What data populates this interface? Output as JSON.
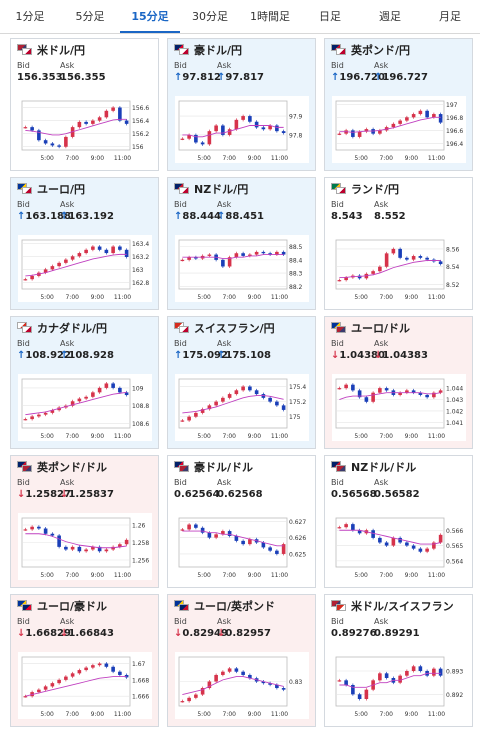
{
  "tabs": [
    {
      "label": "1分足",
      "active": false
    },
    {
      "label": "5分足",
      "active": false
    },
    {
      "label": "15分足",
      "active": true
    },
    {
      "label": "30分足",
      "active": false
    },
    {
      "label": "1時間足",
      "active": false
    },
    {
      "label": "日足",
      "active": false
    },
    {
      "label": "週足",
      "active": false
    },
    {
      "label": "月足",
      "active": false
    }
  ],
  "labels": {
    "bid": "Bid",
    "ask": "Ask"
  },
  "colors": {
    "up_arrow": "#1a66c5",
    "down_arrow": "#d6334b",
    "up_candle": "#d6334b",
    "down_candle": "#1a3fb8",
    "ma_line": "#c040c0"
  },
  "cards": [
    {
      "pair": "米ドル/円",
      "flags": [
        "us",
        "jp"
      ],
      "dir": "flat",
      "bid": "156.353",
      "ask": "156.355",
      "xticks": [
        "5:00",
        "7:00",
        "9:00",
        "11:00"
      ],
      "yticks": [
        "156.6",
        "156.4",
        "156.2",
        "156"
      ],
      "ylim": [
        155.95,
        156.7
      ],
      "series": [
        156.3,
        156.25,
        156.1,
        156.05,
        156.02,
        156.0,
        156.15,
        156.3,
        156.38,
        156.35,
        156.4,
        156.45,
        156.55,
        156.6,
        156.4,
        156.35
      ],
      "ma": [
        156.25,
        156.24,
        156.22,
        156.2,
        156.18,
        156.18,
        156.2,
        156.23,
        156.26,
        156.29,
        156.32,
        156.35,
        156.38,
        156.41,
        156.42,
        156.42
      ]
    },
    {
      "pair": "豪ドル/円",
      "flags": [
        "au",
        "jp"
      ],
      "dir": "up",
      "bid": "97.812",
      "ask": "97.817",
      "xticks": [
        "5:00",
        "7:00",
        "9:00",
        "11:00"
      ],
      "yticks": [
        "97.9",
        "97.8"
      ],
      "ylim": [
        97.72,
        97.98
      ],
      "series": [
        97.78,
        97.8,
        97.76,
        97.75,
        97.82,
        97.85,
        97.8,
        97.83,
        97.88,
        97.9,
        97.87,
        97.84,
        97.83,
        97.85,
        97.82,
        97.81
      ],
      "ma": [
        97.8,
        97.8,
        97.79,
        97.79,
        97.8,
        97.81,
        97.81,
        97.82,
        97.83,
        97.84,
        97.85,
        97.85,
        97.85,
        97.85,
        97.84,
        97.84
      ]
    },
    {
      "pair": "英ポンド/円",
      "flags": [
        "uk",
        "jp"
      ],
      "dir": "up",
      "bid": "196.720",
      "ask": "196.727",
      "xticks": [
        "5:00",
        "7:00",
        "9:00",
        "11:00"
      ],
      "yticks": [
        "197",
        "196.8",
        "196.6",
        "196.4"
      ],
      "ylim": [
        196.3,
        197.05
      ],
      "series": [
        196.55,
        196.6,
        196.5,
        196.58,
        196.62,
        196.55,
        196.6,
        196.65,
        196.7,
        196.75,
        196.8,
        196.85,
        196.9,
        196.8,
        196.85,
        196.72
      ],
      "ma": [
        196.58,
        196.58,
        196.57,
        196.58,
        196.59,
        196.59,
        196.6,
        196.62,
        196.64,
        196.67,
        196.7,
        196.73,
        196.76,
        196.78,
        196.8,
        196.8
      ]
    },
    {
      "pair": "ユーロ/円",
      "flags": [
        "eu",
        "jp"
      ],
      "dir": "up",
      "bid": "163.188",
      "ask": "163.192",
      "xticks": [
        "5:00",
        "7:00",
        "9:00",
        "11:00"
      ],
      "yticks": [
        "163.4",
        "163.2",
        "163",
        "162.8"
      ],
      "ylim": [
        162.7,
        163.45
      ],
      "series": [
        162.85,
        162.9,
        162.95,
        163.0,
        163.05,
        163.1,
        163.15,
        163.2,
        163.25,
        163.3,
        163.35,
        163.3,
        163.25,
        163.35,
        163.3,
        163.19
      ],
      "ma": [
        162.9,
        162.91,
        162.93,
        162.95,
        162.98,
        163.01,
        163.04,
        163.07,
        163.1,
        163.13,
        163.16,
        163.18,
        163.2,
        163.22,
        163.23,
        163.23
      ]
    },
    {
      "pair": "NZドル/円",
      "flags": [
        "nz",
        "jp"
      ],
      "dir": "up",
      "bid": "88.444",
      "ask": "88.451",
      "xticks": [
        "5:00",
        "7:00",
        "9:00",
        "11:00"
      ],
      "yticks": [
        "88.5",
        "88.4",
        "88.3",
        "88.2"
      ],
      "ylim": [
        88.18,
        88.55
      ],
      "series": [
        88.4,
        88.42,
        88.41,
        88.43,
        88.44,
        88.4,
        88.35,
        88.42,
        88.45,
        88.43,
        88.44,
        88.46,
        88.45,
        88.44,
        88.46,
        88.44
      ],
      "ma": [
        88.42,
        88.42,
        88.42,
        88.42,
        88.42,
        88.42,
        88.41,
        88.41,
        88.42,
        88.42,
        88.43,
        88.43,
        88.44,
        88.44,
        88.44,
        88.44
      ]
    },
    {
      "pair": "ランド/円",
      "flags": [
        "za",
        "jp"
      ],
      "dir": "flat",
      "bid": "8.543",
      "ask": "8.552",
      "xticks": [
        "5:00",
        "7:00",
        "9:00",
        "11:00"
      ],
      "yticks": [
        "8.56",
        "8.54",
        "8.52"
      ],
      "ylim": [
        8.515,
        8.57
      ],
      "series": [
        8.525,
        8.528,
        8.53,
        8.527,
        8.532,
        8.535,
        8.54,
        8.555,
        8.56,
        8.55,
        8.548,
        8.552,
        8.55,
        8.548,
        8.546,
        8.543
      ],
      "ma": [
        8.528,
        8.528,
        8.529,
        8.529,
        8.53,
        8.531,
        8.533,
        8.536,
        8.539,
        8.541,
        8.543,
        8.545,
        8.546,
        8.547,
        8.547,
        8.547
      ]
    },
    {
      "pair": "カナダドル/円",
      "flags": [
        "ca",
        "jp"
      ],
      "dir": "up",
      "bid": "108.922",
      "ask": "108.928",
      "xticks": [
        "5:00",
        "7:00",
        "9:00",
        "11:00"
      ],
      "yticks": [
        "109",
        "108.8",
        "108.6"
      ],
      "ylim": [
        108.55,
        109.1
      ],
      "series": [
        108.65,
        108.68,
        108.7,
        108.72,
        108.75,
        108.78,
        108.8,
        108.85,
        108.88,
        108.9,
        108.95,
        109.0,
        109.05,
        109.0,
        108.95,
        108.92
      ],
      "ma": [
        108.7,
        108.71,
        108.72,
        108.73,
        108.75,
        108.77,
        108.79,
        108.81,
        108.83,
        108.85,
        108.87,
        108.89,
        108.91,
        108.93,
        108.94,
        108.95
      ]
    },
    {
      "pair": "スイスフラン/円",
      "flags": [
        "ch",
        "jp"
      ],
      "dir": "up",
      "bid": "175.092",
      "ask": "175.108",
      "xticks": [
        "5:00",
        "7:00",
        "9:00",
        "11:00"
      ],
      "yticks": [
        "175.4",
        "175.2",
        "175"
      ],
      "ylim": [
        174.85,
        175.5
      ],
      "series": [
        174.95,
        175.0,
        175.05,
        175.1,
        175.15,
        175.2,
        175.25,
        175.3,
        175.35,
        175.4,
        175.35,
        175.3,
        175.25,
        175.2,
        175.15,
        175.09
      ],
      "ma": [
        175.05,
        175.06,
        175.07,
        175.09,
        175.11,
        175.13,
        175.16,
        175.19,
        175.22,
        175.25,
        175.27,
        175.28,
        175.28,
        175.27,
        175.25,
        175.23
      ]
    },
    {
      "pair": "ユーロ/ドル",
      "flags": [
        "eu",
        "us"
      ],
      "dir": "down",
      "bid": "1.04380",
      "ask": "1.04383",
      "xticks": [
        "5:00",
        "7:00",
        "9:00",
        "11:00"
      ],
      "yticks": [
        "1.044",
        "1.043",
        "1.042",
        "1.041"
      ],
      "ylim": [
        1.0405,
        1.0448
      ],
      "series": [
        1.044,
        1.0443,
        1.0438,
        1.0432,
        1.0428,
        1.0436,
        1.044,
        1.0438,
        1.0434,
        1.0436,
        1.0438,
        1.0436,
        1.0434,
        1.0432,
        1.0436,
        1.0438
      ],
      "ma": [
        1.043,
        1.0432,
        1.0433,
        1.0433,
        1.0433,
        1.0434,
        1.0435,
        1.0436,
        1.0436,
        1.0436,
        1.0436,
        1.0436,
        1.0436,
        1.0435,
        1.0435,
        1.0436
      ]
    },
    {
      "pair": "英ポンド/ドル",
      "flags": [
        "uk",
        "us"
      ],
      "dir": "down",
      "bid": "1.25827",
      "ask": "1.25837",
      "xticks": [
        "5:00",
        "7:00",
        "9:00",
        "11:00"
      ],
      "yticks": [
        "1.26",
        "1.258",
        "1.256"
      ],
      "ylim": [
        1.2552,
        1.2608
      ],
      "series": [
        1.2595,
        1.2598,
        1.2596,
        1.259,
        1.2588,
        1.2575,
        1.2572,
        1.2575,
        1.257,
        1.2572,
        1.2575,
        1.257,
        1.2572,
        1.2575,
        1.2578,
        1.2583
      ],
      "ma": [
        1.259,
        1.259,
        1.259,
        1.2589,
        1.2587,
        1.2584,
        1.2581,
        1.2579,
        1.2577,
        1.2576,
        1.2575,
        1.2574,
        1.2574,
        1.2574,
        1.2575,
        1.2576
      ]
    },
    {
      "pair": "豪ドル/ドル",
      "flags": [
        "au",
        "us"
      ],
      "dir": "flat",
      "bid": "0.62564",
      "ask": "0.62568",
      "xticks": [
        "5:00",
        "7:00",
        "9:00",
        "11:00"
      ],
      "yticks": [
        "0.627",
        "0.626",
        "0.625"
      ],
      "ylim": [
        0.6242,
        0.6272
      ],
      "series": [
        0.6265,
        0.6268,
        0.6266,
        0.6263,
        0.626,
        0.6262,
        0.6264,
        0.6261,
        0.6258,
        0.6256,
        0.6259,
        0.6257,
        0.6254,
        0.6252,
        0.625,
        0.6256
      ],
      "ma": [
        0.6264,
        0.6264,
        0.6264,
        0.6264,
        0.6263,
        0.6263,
        0.6262,
        0.6262,
        0.6261,
        0.626,
        0.6259,
        0.6258,
        0.6257,
        0.6256,
        0.6255,
        0.6255
      ]
    },
    {
      "pair": "NZドル/ドル",
      "flags": [
        "nz",
        "us"
      ],
      "dir": "flat",
      "bid": "0.56568",
      "ask": "0.56582",
      "xticks": [
        "5:00",
        "7:00",
        "9:00",
        "11:00"
      ],
      "yticks": [
        "0.566",
        "0.565",
        "0.564"
      ],
      "ylim": [
        0.5636,
        0.5668
      ],
      "series": [
        0.5662,
        0.5664,
        0.566,
        0.5658,
        0.566,
        0.5655,
        0.5652,
        0.565,
        0.5655,
        0.5652,
        0.565,
        0.5648,
        0.5646,
        0.5648,
        0.5652,
        0.5657
      ],
      "ma": [
        0.566,
        0.566,
        0.566,
        0.566,
        0.5659,
        0.5658,
        0.5657,
        0.5656,
        0.5655,
        0.5654,
        0.5653,
        0.5652,
        0.5651,
        0.5651,
        0.5651,
        0.5652
      ]
    },
    {
      "pair": "ユーロ/豪ドル",
      "flags": [
        "eu",
        "au"
      ],
      "dir": "down",
      "bid": "1.66829",
      "ask": "1.66843",
      "xticks": [
        "5:00",
        "7:00",
        "9:00",
        "11:00"
      ],
      "yticks": [
        "1.67",
        "1.668",
        "1.666"
      ],
      "ylim": [
        1.6648,
        1.6708
      ],
      "series": [
        1.666,
        1.6665,
        1.6668,
        1.6672,
        1.6676,
        1.668,
        1.6684,
        1.6688,
        1.6692,
        1.6695,
        1.6698,
        1.67,
        1.6696,
        1.669,
        1.6686,
        1.6683
      ],
      "ma": [
        1.666,
        1.6662,
        1.6664,
        1.6666,
        1.6668,
        1.667,
        1.6672,
        1.6674,
        1.6676,
        1.6678,
        1.668,
        1.6682,
        1.6683,
        1.6684,
        1.6684,
        1.6684
      ]
    },
    {
      "pair": "ユーロ/英ポンド",
      "flags": [
        "eu",
        "uk"
      ],
      "dir": "down",
      "bid": "0.82949",
      "ask": "0.82957",
      "xticks": [
        "5:00",
        "7:00",
        "9:00",
        "11:00"
      ],
      "yticks": [
        "0.83"
      ],
      "ylim": [
        0.8285,
        0.8315
      ],
      "series": [
        0.8288,
        0.829,
        0.8292,
        0.8296,
        0.83,
        0.8304,
        0.8306,
        0.8308,
        0.8306,
        0.8304,
        0.8302,
        0.83,
        0.8299,
        0.8298,
        0.8296,
        0.8295
      ],
      "ma": [
        0.8292,
        0.8293,
        0.8294,
        0.8295,
        0.8297,
        0.8299,
        0.8301,
        0.8302,
        0.8303,
        0.8303,
        0.8302,
        0.8301,
        0.83,
        0.8299,
        0.8298,
        0.8297
      ]
    },
    {
      "pair": "米ドル/スイスフラン",
      "flags": [
        "us",
        "ch"
      ],
      "dir": "flat",
      "bid": "0.89276",
      "ask": "0.89291",
      "xticks": [
        "5:00",
        "7:00",
        "9:00",
        "11:00"
      ],
      "yticks": [
        "0.893",
        "0.892"
      ],
      "ylim": [
        0.8915,
        0.8936
      ],
      "series": [
        0.8926,
        0.8924,
        0.892,
        0.8918,
        0.8922,
        0.8926,
        0.8929,
        0.8927,
        0.8925,
        0.8928,
        0.893,
        0.8932,
        0.893,
        0.8928,
        0.8931,
        0.8928
      ],
      "ma": [
        0.8924,
        0.8924,
        0.8923,
        0.8923,
        0.8923,
        0.8924,
        0.8925,
        0.8925,
        0.8926,
        0.8926,
        0.8927,
        0.8928,
        0.8928,
        0.8929,
        0.8929,
        0.8929
      ]
    }
  ]
}
